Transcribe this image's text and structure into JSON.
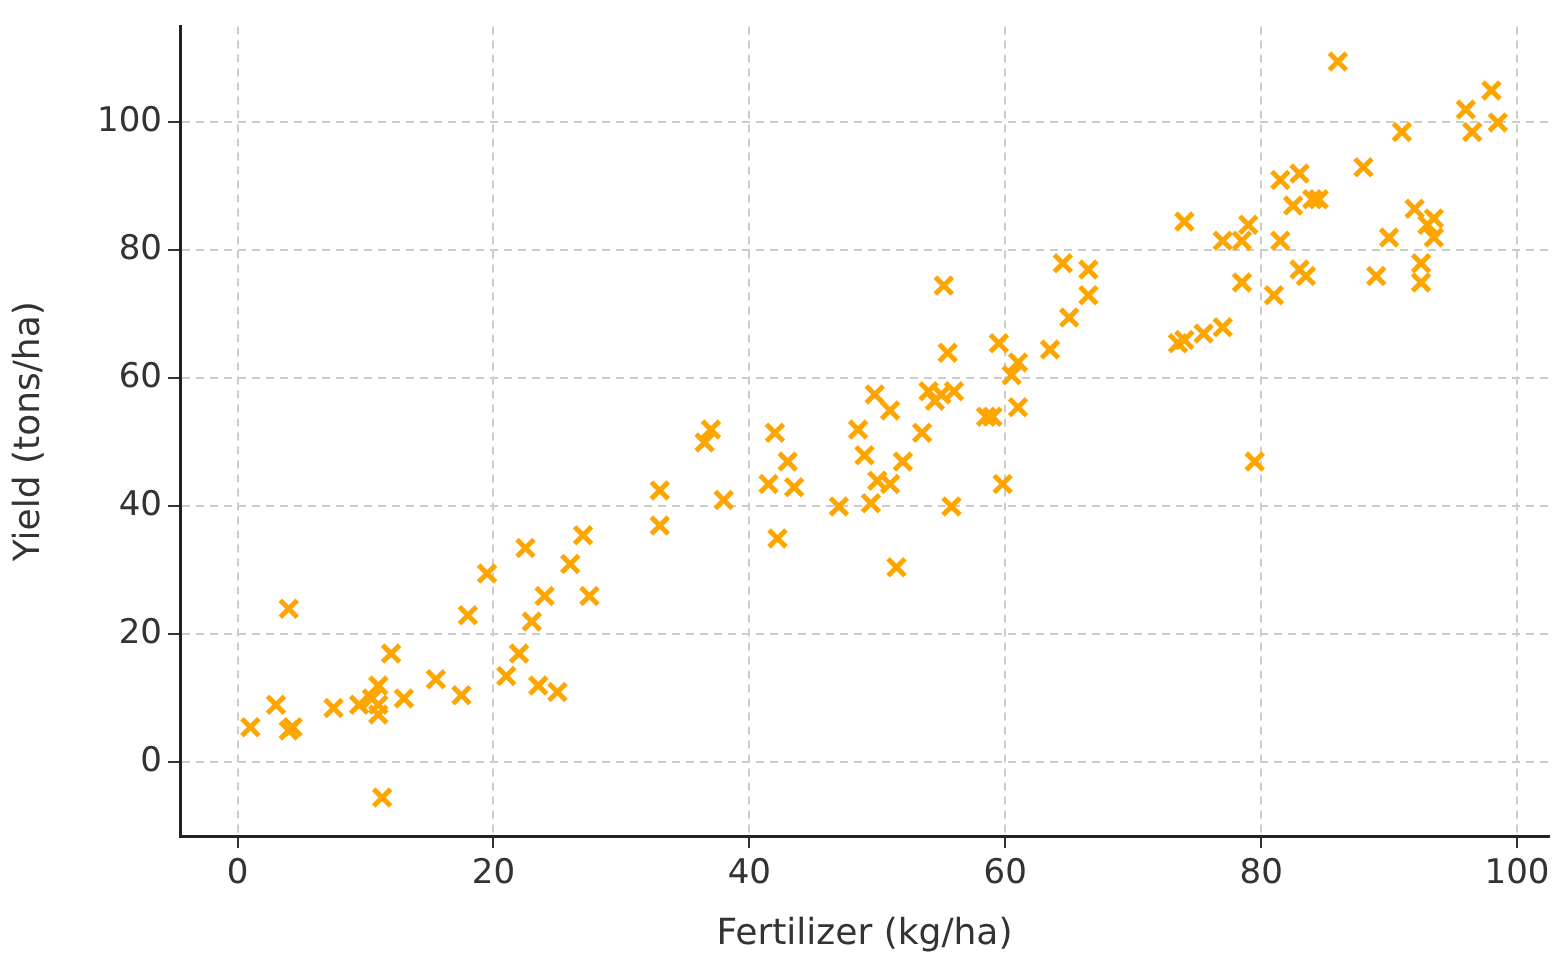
{
  "chart_data": {
    "type": "scatter",
    "xlabel": "Fertilizer (kg/ha)",
    "ylabel": "Yield (tons/ha)",
    "xlim": [
      -4.5,
      102.5
    ],
    "ylim": [
      -11.5,
      115
    ],
    "xticks": [
      0,
      20,
      40,
      60,
      80,
      100
    ],
    "yticks": [
      0,
      20,
      40,
      60,
      80,
      100
    ],
    "grid": true,
    "legend": false,
    "marker": "cross",
    "series": [
      {
        "color": "#ffa500",
        "x": [
          1,
          3,
          4,
          4,
          4.3,
          7.5,
          9.5,
          10.5,
          11,
          11,
          11,
          11.3,
          12,
          13,
          15.5,
          17.5,
          18,
          19.5,
          21,
          22,
          22.5,
          23,
          23.5,
          24,
          25,
          26,
          27,
          27.5,
          33,
          33,
          36.5,
          37,
          38,
          41.5,
          42,
          42.2,
          43,
          43.5,
          47,
          48.5,
          49,
          49.5,
          49.8,
          50,
          51,
          51,
          51.5,
          52,
          53.5,
          54,
          54.5,
          55,
          55.2,
          55.5,
          55.8,
          56,
          58.5,
          59,
          59.5,
          59.8,
          60.5,
          61,
          61,
          63.5,
          64.5,
          65,
          66.5,
          66.5,
          73.5,
          74,
          74,
          75.5,
          77,
          77,
          78.5,
          78.5,
          79,
          79.5,
          81,
          81.5,
          81.5,
          82.5,
          83,
          83,
          83.5,
          84,
          84.5,
          86,
          88,
          89,
          90,
          91,
          92,
          92.5,
          92.5,
          93,
          93.5,
          93.5,
          96,
          96.5,
          98,
          98.5
        ],
        "values": [
          5.5,
          9,
          24,
          5,
          5.5,
          8.5,
          9,
          10,
          7.5,
          9,
          12,
          -5.5,
          17,
          10,
          13,
          10.5,
          23,
          29.5,
          13.5,
          17,
          33.5,
          22,
          12,
          26,
          11,
          31,
          35.5,
          26,
          42.5,
          37,
          50,
          52,
          41,
          43.5,
          51.5,
          35,
          47,
          43,
          40,
          52,
          48,
          40.5,
          57.5,
          44,
          55,
          43.5,
          30.5,
          47,
          51.5,
          58,
          56.5,
          57.5,
          74.5,
          64,
          40,
          58,
          54,
          54,
          65.5,
          43.5,
          60.5,
          62.5,
          55.5,
          64.5,
          78,
          69.5,
          73,
          77,
          65.5,
          66,
          84.5,
          67,
          68,
          81.5,
          75,
          81.5,
          84,
          47,
          73,
          91,
          81.5,
          87,
          77,
          92,
          76,
          88,
          88,
          109.5,
          93,
          76,
          82,
          98.5,
          86.5,
          75,
          78,
          84,
          82,
          85,
          102,
          98.5,
          105,
          100
        ]
      }
    ]
  }
}
